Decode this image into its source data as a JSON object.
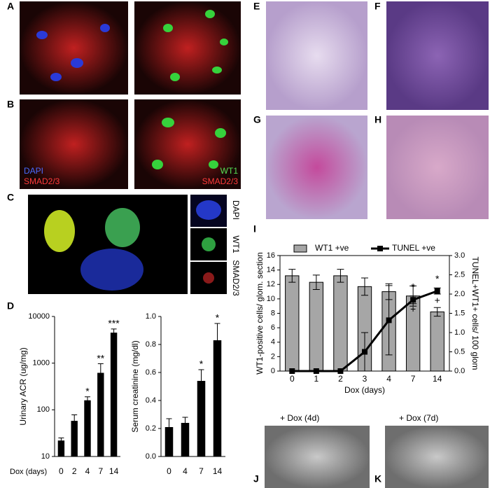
{
  "panels": {
    "a": "A",
    "b": "B",
    "c": "C",
    "d": "D",
    "e": "E",
    "f": "F",
    "g": "G",
    "h": "H",
    "i": "I",
    "j": "J",
    "k": "K"
  },
  "image_labels": {
    "b_dapi": "DAPI",
    "b_smad_left": "SMAD2/3",
    "b_wt1": "WT1",
    "b_smad_right": "SMAD2/3",
    "c_dapi": "DAPI",
    "c_wt1": "WT1",
    "c_smad": "SMAD2/3",
    "j_title": "+ Dox (4d)",
    "k_title": "+ Dox (7d)"
  },
  "chart_data": [
    {
      "type": "bar",
      "ylabel": "Urinary ACR (ug/mg)",
      "xlabel": "Dox (days)",
      "log": true,
      "color": "#000000",
      "categories": [
        "0",
        "2",
        "4",
        "7",
        "14"
      ],
      "values": [
        22,
        58,
        160,
        620,
        4500
      ],
      "errors": [
        3,
        20,
        30,
        350,
        900
      ],
      "significance": [
        null,
        null,
        "*",
        "**",
        "***"
      ],
      "ylim": [
        10,
        10000
      ],
      "yticks": [
        10,
        100,
        {
          "value": 1000,
          "label": "1000"
        },
        {
          "value": 10000,
          "label": "10000"
        }
      ]
    },
    {
      "type": "bar",
      "ylabel": "Serum creatinine (mg/dl)",
      "log": false,
      "color": "#000000",
      "categories": [
        "0",
        "4",
        "7",
        "14"
      ],
      "values": [
        0.21,
        0.24,
        0.54,
        0.83
      ],
      "errors": [
        0.06,
        0.04,
        0.08,
        0.12
      ],
      "significance": [
        null,
        null,
        "*",
        "*"
      ],
      "ylim": [
        0,
        1.0
      ],
      "yticks": [
        {
          "value": 0,
          "label": "0.0"
        },
        0.2,
        0.4,
        0.6,
        0.8,
        {
          "value": 1.0,
          "label": "1.0"
        }
      ]
    },
    {
      "type": "combo",
      "ylabel": "WT1-positive cells/ glom. section",
      "y2label": "TUNEL+WT1+ cells/ 100 glom",
      "xlabel": "Dox (days)",
      "legend": "top",
      "categories": [
        "0",
        "1",
        "2",
        "3",
        "4",
        "7",
        "14"
      ],
      "series": [
        {
          "name": "WT1 +ve",
          "type": "bar",
          "color": "#a6a6a6",
          "values": [
            13.2,
            12.3,
            13.2,
            11.7,
            11.0,
            10.4,
            8.2
          ],
          "errors": [
            0.9,
            1.0,
            0.9,
            1.2,
            1.1,
            1.4,
            0.6
          ]
        },
        {
          "name": "TUNEL +ve",
          "type": "line",
          "axis": "y2",
          "color": "#000000",
          "values": [
            0,
            0,
            0,
            0.5,
            1.32,
            1.85,
            2.08
          ],
          "errors": [
            0,
            0,
            0,
            0.5,
            0.9,
            0.1,
            0.08
          ]
        }
      ],
      "upper_marks": [
        null,
        null,
        null,
        null,
        null,
        "*",
        "*"
      ],
      "lower_marks": [
        null,
        null,
        null,
        null,
        null,
        "+",
        "+"
      ],
      "ylim": [
        0,
        16
      ],
      "yticks": [
        0,
        2,
        4,
        6,
        8,
        10,
        12,
        14,
        16
      ],
      "y2lim": [
        0,
        3.0
      ],
      "y2ticks": [
        {
          "value": 0,
          "label": "0.0"
        },
        0.5,
        {
          "value": 1,
          "label": "1.0"
        },
        1.5,
        {
          "value": 2,
          "label": "2.0"
        },
        2.5,
        {
          "value": 3,
          "label": "3.0"
        }
      ]
    }
  ]
}
